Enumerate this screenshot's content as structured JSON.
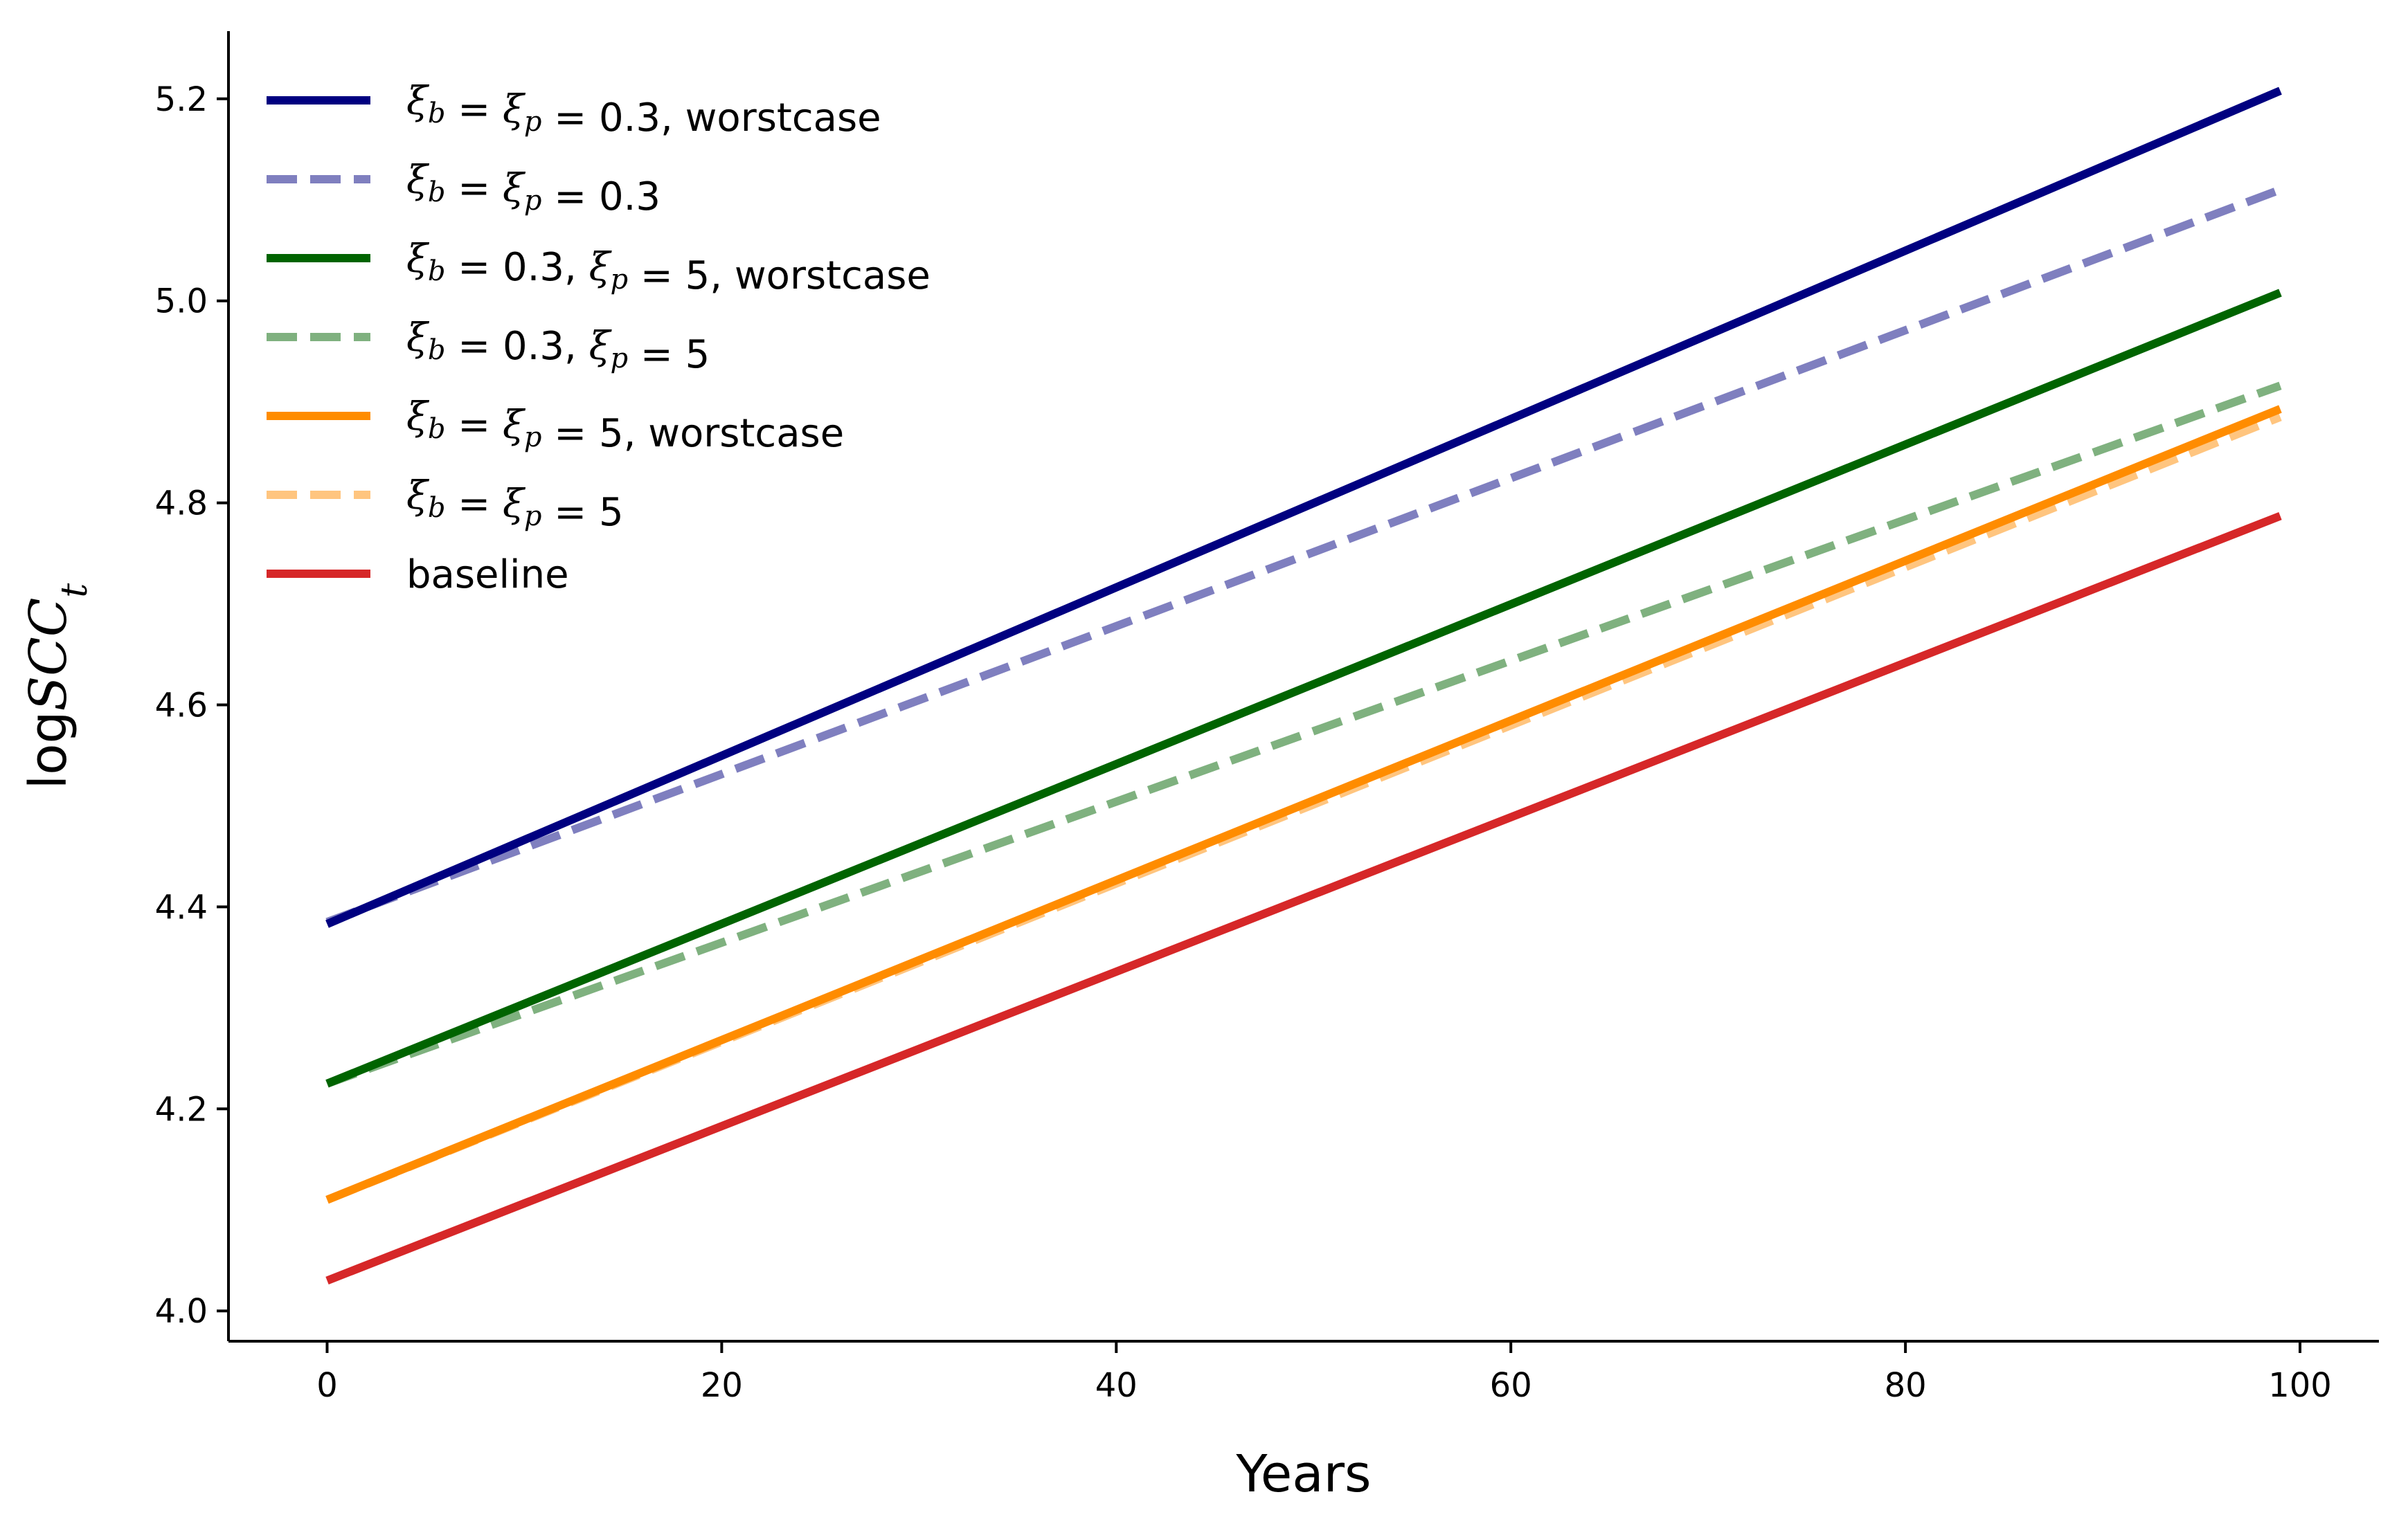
{
  "chart_data": {
    "type": "line",
    "title": "",
    "xlabel": "Years",
    "ylabel": "logSCC",
    "ylabel_subscript": "t",
    "xlim": [
      -5,
      104
    ],
    "ylim": [
      3.97,
      5.267
    ],
    "xticks": [
      0,
      20,
      40,
      60,
      80,
      100
    ],
    "yticks": [
      4.0,
      4.2,
      4.4,
      4.6,
      4.8,
      5.0,
      5.2
    ],
    "xtick_labels": [
      "0",
      "20",
      "40",
      "60",
      "80",
      "100"
    ],
    "ytick_labels": [
      "4.0",
      "4.2",
      "4.4",
      "4.6",
      "4.8",
      "5.0",
      "5.2"
    ],
    "grid": false,
    "legend_position": "upper-left",
    "series": [
      {
        "name": "ξb = ξp = 0.3, worstcase",
        "color": "#000080",
        "dash": "solid",
        "opacity": 1.0,
        "x": [
          0,
          99
        ],
        "y": [
          4.383,
          5.208
        ]
      },
      {
        "name": "ξb = ξp = 0.3",
        "color": "#000080",
        "dash": "dashed",
        "opacity": 0.5,
        "x": [
          0,
          99
        ],
        "y": [
          4.385,
          5.11
        ]
      },
      {
        "name": "ξb = 0.3, ξp = 5, worstcase",
        "color": "#006400",
        "dash": "solid",
        "opacity": 1.0,
        "x": [
          0,
          99
        ],
        "y": [
          4.225,
          5.008
        ]
      },
      {
        "name": "ξb = 0.3, ξp = 5",
        "color": "#006400",
        "dash": "dashed",
        "opacity": 0.5,
        "x": [
          0,
          99
        ],
        "y": [
          4.225,
          4.916
        ]
      },
      {
        "name": "ξb = ξp = 5, worstcase",
        "color": "#ff8c00",
        "dash": "solid",
        "opacity": 1.0,
        "x": [
          0,
          99
        ],
        "y": [
          4.11,
          4.893
        ]
      },
      {
        "name": "ξb = ξp = 5",
        "color": "#ff8c00",
        "dash": "dashed",
        "opacity": 0.5,
        "x": [
          0,
          99
        ],
        "y": [
          4.11,
          4.885
        ]
      },
      {
        "name": "baseline",
        "color": "#d62728",
        "dash": "solid",
        "opacity": 1.0,
        "x": [
          0,
          99
        ],
        "y": [
          4.03,
          4.787
        ]
      }
    ],
    "legend": [
      {
        "base": "ξ",
        "parts": [
          [
            "b",
            "sub"
          ],
          [
            " = ",
            "op"
          ],
          [
            "ξ",
            "math"
          ],
          [
            "p",
            "sub"
          ],
          [
            " = ",
            "op"
          ],
          [
            "0.3",
            "num"
          ],
          [
            ", worstcase",
            "txt"
          ]
        ]
      },
      {
        "base": "ξ",
        "parts": [
          [
            "b",
            "sub"
          ],
          [
            " = ",
            "op"
          ],
          [
            "ξ",
            "math"
          ],
          [
            "p",
            "sub"
          ],
          [
            " = ",
            "op"
          ],
          [
            "0.3",
            "num"
          ]
        ]
      },
      {
        "base": "ξ",
        "parts": [
          [
            "b",
            "sub"
          ],
          [
            " = ",
            "op"
          ],
          [
            "0.3, ",
            "num"
          ],
          [
            "ξ",
            "math"
          ],
          [
            "p",
            "sub"
          ],
          [
            " = ",
            "op"
          ],
          [
            "5",
            "num"
          ],
          [
            ", worstcase",
            "txt"
          ]
        ]
      },
      {
        "base": "ξ",
        "parts": [
          [
            "b",
            "sub"
          ],
          [
            " = ",
            "op"
          ],
          [
            "0.3, ",
            "num"
          ],
          [
            "ξ",
            "math"
          ],
          [
            "p",
            "sub"
          ],
          [
            " = ",
            "op"
          ],
          [
            "5",
            "num"
          ]
        ]
      },
      {
        "base": "ξ",
        "parts": [
          [
            "b",
            "sub"
          ],
          [
            " = ",
            "op"
          ],
          [
            "ξ",
            "math"
          ],
          [
            "p",
            "sub"
          ],
          [
            " = ",
            "op"
          ],
          [
            "5",
            "num"
          ],
          [
            ", worstcase",
            "txt"
          ]
        ]
      },
      {
        "base": "ξ",
        "parts": [
          [
            "b",
            "sub"
          ],
          [
            " = ",
            "op"
          ],
          [
            "ξ",
            "math"
          ],
          [
            "p",
            "sub"
          ],
          [
            " = ",
            "op"
          ],
          [
            "5",
            "num"
          ]
        ]
      },
      {
        "base": "",
        "parts": [
          [
            "baseline",
            "txt"
          ]
        ]
      }
    ]
  }
}
